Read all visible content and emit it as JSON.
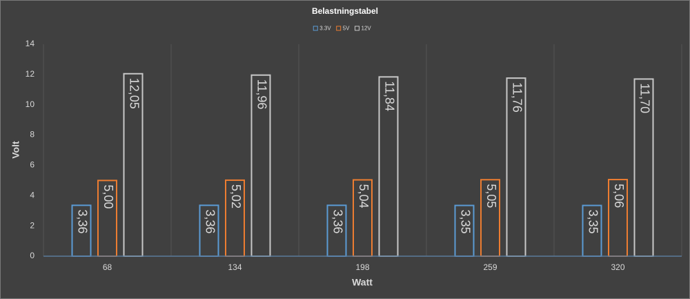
{
  "chart_data": {
    "type": "bar",
    "title": "Belastningstabel",
    "x_label": "Watt",
    "y_label": "Volt",
    "categories": [
      "68",
      "134",
      "198",
      "259",
      "320"
    ],
    "series": [
      {
        "name": "3.3V",
        "color": "#5b9bd5",
        "values": [
          3.36,
          3.36,
          3.36,
          3.35,
          3.35
        ],
        "value_labels": [
          "3,36",
          "3,36",
          "3,36",
          "3,35",
          "3,35"
        ]
      },
      {
        "name": "5V",
        "color": "#ed7d31",
        "values": [
          5.0,
          5.02,
          5.04,
          5.05,
          5.06
        ],
        "value_labels": [
          "5,00",
          "5,02",
          "5,04",
          "5,05",
          "5,06"
        ]
      },
      {
        "name": "12V",
        "color": "#c8c8c8",
        "values": [
          12.05,
          11.96,
          11.84,
          11.76,
          11.7
        ],
        "value_labels": [
          "12,05",
          "11,96",
          "11,84",
          "11,76",
          "11,70"
        ]
      }
    ],
    "ylim": [
      0,
      14
    ],
    "yticks": [
      0,
      2,
      4,
      6,
      8,
      10,
      12,
      14
    ],
    "grid": false,
    "legend": "top"
  }
}
